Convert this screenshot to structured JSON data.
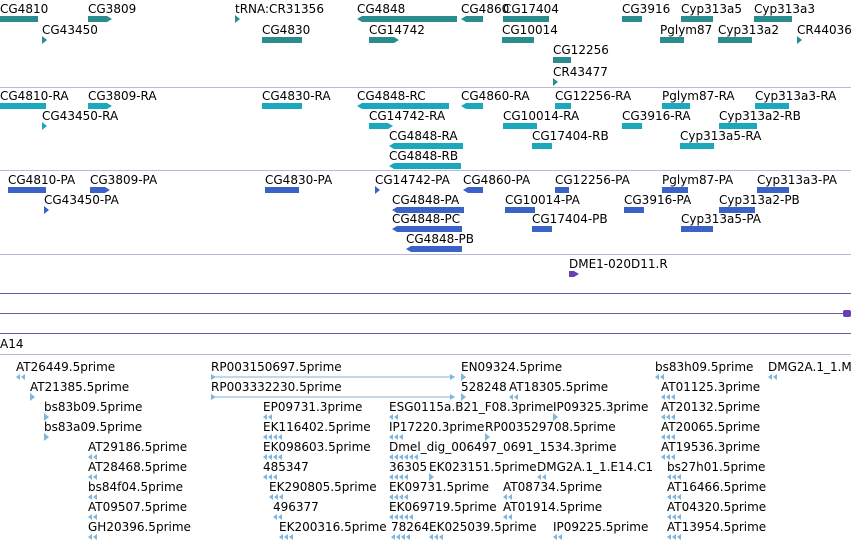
{
  "colors": {
    "gene": "#2a8c8c",
    "transcript": "#1ba8bd",
    "protein": "#3b62c9",
    "bac": "#6b3fb4",
    "est": "#7fb6de",
    "divider": "#b9b9d9",
    "genome_line": "#6a5aa8"
  },
  "genome_track": {
    "label": "A14"
  },
  "genes": [
    {
      "label": "CG4810"
    },
    {
      "label": "CG3809"
    },
    {
      "label": "tRNA:CR31356"
    },
    {
      "label": "CG4848"
    },
    {
      "label": "CG4860"
    },
    {
      "label": "CG17404"
    },
    {
      "label": "CG3916"
    },
    {
      "label": "Cyp313a5"
    },
    {
      "label": "Cyp313a3"
    },
    {
      "label": "CG43450"
    },
    {
      "label": "CG4830"
    },
    {
      "label": "CG14742"
    },
    {
      "label": "CG10014"
    },
    {
      "label": "Pglym87"
    },
    {
      "label": "Cyp313a2"
    },
    {
      "label": "CR44036"
    },
    {
      "label": "CG12256"
    },
    {
      "label": "CR43477"
    }
  ],
  "transcripts": [
    {
      "label": "CG4810-RA"
    },
    {
      "label": "CG3809-RA"
    },
    {
      "label": "CG4830-RA"
    },
    {
      "label": "CG4848-RC"
    },
    {
      "label": "CG4860-RA"
    },
    {
      "label": "CG12256-RA"
    },
    {
      "label": "Pglym87-RA"
    },
    {
      "label": "Cyp313a3-RA"
    },
    {
      "label": "CG43450-RA"
    },
    {
      "label": "CG14742-RA"
    },
    {
      "label": "CG10014-RA"
    },
    {
      "label": "CG3916-RA"
    },
    {
      "label": "Cyp313a2-RB"
    },
    {
      "label": "CG4848-RA"
    },
    {
      "label": "CG17404-RB"
    },
    {
      "label": "Cyp313a5-RA"
    },
    {
      "label": "CG4848-RB"
    }
  ],
  "proteins": [
    {
      "label": "CG4810-PA"
    },
    {
      "label": "CG3809-PA"
    },
    {
      "label": "CG4830-PA"
    },
    {
      "label": "CG14742-PA"
    },
    {
      "label": "CG4860-PA"
    },
    {
      "label": "CG12256-PA"
    },
    {
      "label": "Pglym87-PA"
    },
    {
      "label": "Cyp313a3-PA"
    },
    {
      "label": "CG43450-PA"
    },
    {
      "label": "CG4848-PA"
    },
    {
      "label": "CG10014-PA"
    },
    {
      "label": "CG3916-PA"
    },
    {
      "label": "Cyp313a2-PB"
    },
    {
      "label": "CG4848-PC"
    },
    {
      "label": "CG17404-PB"
    },
    {
      "label": "Cyp313a5-PA"
    },
    {
      "label": "CG4848-PB"
    }
  ],
  "bacs": [
    {
      "label": "DME1-020D11.R"
    }
  ],
  "ests": [
    {
      "label": "AT26449.5prime"
    },
    {
      "label": "RP003150697.5prime"
    },
    {
      "label": "EN09324.5prime"
    },
    {
      "label": "bs83h09.5prime"
    },
    {
      "label": "DMG2A.1_1.M"
    },
    {
      "label": "AT21385.5prime"
    },
    {
      "label": "RP003332230.5prime"
    },
    {
      "label": "528248"
    },
    {
      "label": "AT18305.5prime"
    },
    {
      "label": "AT01125.3prime"
    },
    {
      "label": "bs83b09.5prime"
    },
    {
      "label": "EP09731.3prime"
    },
    {
      "label": "ESG0115a.B21_F08.3prime"
    },
    {
      "label": "IP09325.3prime"
    },
    {
      "label": "AT20132.5prime"
    },
    {
      "label": "bs83a09.5prime"
    },
    {
      "label": "EK116402.5prime"
    },
    {
      "label": "IP17220.3prime"
    },
    {
      "label": "RP003529708.5prime"
    },
    {
      "label": "AT20065.5prime"
    },
    {
      "label": "AT29186.5prime"
    },
    {
      "label": "EK098603.5prime"
    },
    {
      "label": "Dmel_dig_006497_0691_1534.3prime"
    },
    {
      "label": "AT19536.3prime"
    },
    {
      "label": "AT28468.5prime"
    },
    {
      "label": "485347"
    },
    {
      "label": "36305"
    },
    {
      "label": "EK023151.5prime"
    },
    {
      "label": "DMG2A.1_1.E14.C1"
    },
    {
      "label": "bs27h01.5prime"
    },
    {
      "label": "bs84f04.5prime"
    },
    {
      "label": "EK290805.5prime"
    },
    {
      "label": "EK09731.5prime"
    },
    {
      "label": "AT08734.5prime"
    },
    {
      "label": "AT16466.5prime"
    },
    {
      "label": "AT09507.5prime"
    },
    {
      "label": "496377"
    },
    {
      "label": "EK069719.5prime"
    },
    {
      "label": "AT01914.5prime"
    },
    {
      "label": "AT04320.5prime"
    },
    {
      "label": "GH20396.5prime"
    },
    {
      "label": "EK200316.5prime"
    },
    {
      "label": "78264"
    },
    {
      "label": "EK025039.5prime"
    },
    {
      "label": "IP09225.5prime"
    },
    {
      "label": "AT13954.5prime"
    }
  ]
}
